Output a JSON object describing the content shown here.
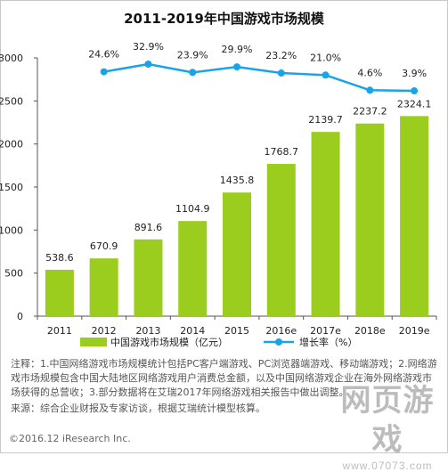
{
  "chart_data": {
    "type": "bar",
    "title": "2011-2019年中国游戏市场规模",
    "categories": [
      "2011",
      "2012",
      "2013",
      "2014",
      "2015",
      "2016e",
      "2017e",
      "2018e",
      "2019e"
    ],
    "series": [
      {
        "name": "中国游戏市场规模（亿元）",
        "type": "bar",
        "color": "#9acd1e",
        "values": [
          538.6,
          670.9,
          891.6,
          1104.9,
          1435.8,
          1768.7,
          2139.7,
          2237.2,
          2324.1
        ],
        "labels": [
          "538.6",
          "670.9",
          "891.6",
          "1104.9",
          "1435.8",
          "1768.7",
          "2139.7",
          "2237.2",
          "2324.1"
        ]
      },
      {
        "name": "增长率（%）",
        "type": "line",
        "color": "#1aa3e8",
        "values": [
          null,
          24.6,
          32.9,
          23.9,
          29.9,
          23.2,
          21.0,
          4.6,
          3.9
        ],
        "labels": [
          "",
          "24.6%",
          "32.9%",
          "23.9%",
          "29.9%",
          "23.2%",
          "21.0%",
          "4.6%",
          "3.9%"
        ]
      }
    ],
    "ylim": [
      0,
      3000
    ],
    "yticks": [
      "0",
      "500",
      "1000",
      "1500",
      "2000",
      "2500",
      "3000"
    ],
    "legend_position": "bottom",
    "grid": false
  },
  "note": "注释：1.中国网络游戏市场规模统计包括PC客户端游戏、PC浏览器端游戏、移动端游戏；2.网络游戏市场规模包含中国大陆地区网络游戏用户消费总金额，以及中国网络游戏企业在海外网络游戏市场获得的总营收；3.部分数据将在艾瑞2017年网络游戏相关报告中做出调整。",
  "source": "来源：综合企业财报及专家访谈，根据艾瑞统计模型核算。",
  "copyright": "©2016.12 iResearch Inc.",
  "watermark": {
    "main": "网页游戏",
    "sub": "www.07073.com"
  }
}
